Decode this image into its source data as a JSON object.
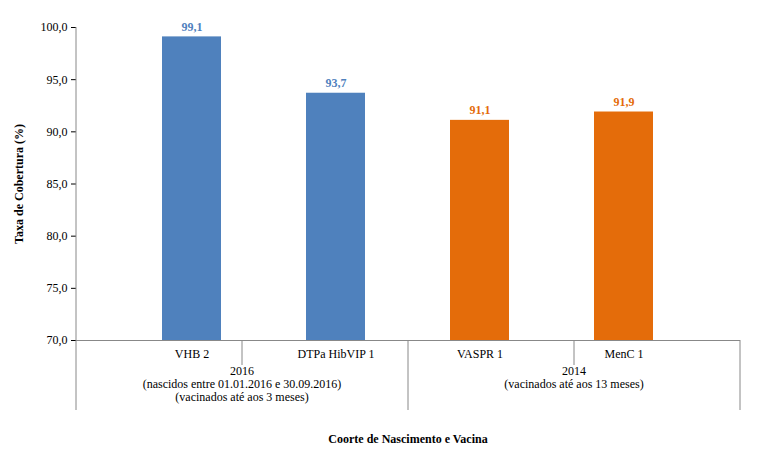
{
  "chart_data": {
    "type": "bar",
    "y_label": "Taxa de Cobertura (%)",
    "x_label": "Coorte de Nascimento e Vacina",
    "categories": [
      "VHB 2",
      "DTPa HibVIP 1",
      "VASPR 1",
      "MenC 1"
    ],
    "values": [
      99.1,
      93.7,
      91.1,
      91.9
    ],
    "value_labels": [
      "99,1",
      "93,7",
      "91,1",
      "91,9"
    ],
    "colors": [
      "#4f81bd",
      "#4f81bd",
      "#e46c0a",
      "#e46c0a"
    ],
    "data_labels": true,
    "grid": false,
    "ylim": [
      70,
      100
    ],
    "yticks": [
      {
        "value": 70,
        "label": "70,0"
      },
      {
        "value": 75,
        "label": "75,0"
      },
      {
        "value": 80,
        "label": "80,0"
      },
      {
        "value": 85,
        "label": "85,0"
      },
      {
        "value": 90,
        "label": "90,0"
      },
      {
        "value": 95,
        "label": "95,0"
      },
      {
        "value": 100,
        "label": "100,0"
      }
    ],
    "groups": [
      {
        "label": [
          "2016",
          "(nascidos entre 01.01.2016 e 30.09.2016)",
          "(vacinados até aos 3 meses)"
        ],
        "categories": [
          "VHB 2",
          "DTPa HibVIP 1"
        ]
      },
      {
        "label": [
          "2014",
          "(vacinados até aos 13 meses)"
        ],
        "categories": [
          "VASPR 1",
          "MenC 1"
        ]
      }
    ]
  }
}
